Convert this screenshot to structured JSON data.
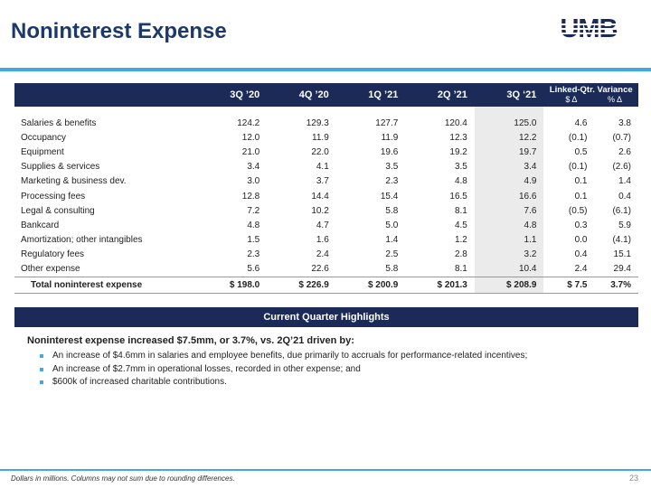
{
  "header": {
    "title": "Noninterest Expense",
    "logo_text": "UMB",
    "colors": {
      "navy": "#1b2a57",
      "title": "#1b3a6b",
      "accent": "#3fa9e0"
    }
  },
  "table": {
    "columns": [
      "3Q ’20",
      "4Q ’20",
      "1Q ’21",
      "2Q ’21",
      "3Q ‘21"
    ],
    "variance_header": "Linked-Qtr. Variance",
    "variance_sub": [
      "$ Δ",
      "% Δ"
    ],
    "rows": [
      {
        "label": "Salaries & benefits",
        "values": [
          "124.2",
          "129.3",
          "127.7",
          "120.4",
          "125.0"
        ],
        "var_abs": "4.6",
        "var_pct": "3.8"
      },
      {
        "label": "Occupancy",
        "values": [
          "12.0",
          "11.9",
          "11.9",
          "12.3",
          "12.2"
        ],
        "var_abs": "(0.1)",
        "var_pct": "(0.7)"
      },
      {
        "label": "Equipment",
        "values": [
          "21.0",
          "22.0",
          "19.6",
          "19.2",
          "19.7"
        ],
        "var_abs": "0.5",
        "var_pct": "2.6"
      },
      {
        "label": "Supplies & services",
        "values": [
          "3.4",
          "4.1",
          "3.5",
          "3.5",
          "3.4"
        ],
        "var_abs": "(0.1)",
        "var_pct": "(2.6)"
      },
      {
        "label": "Marketing & business dev.",
        "values": [
          "3.0",
          "3.7",
          "2.3",
          "4.8",
          "4.9"
        ],
        "var_abs": "0.1",
        "var_pct": "1.4"
      },
      {
        "label": "Processing fees",
        "values": [
          "12.8",
          "14.4",
          "15.4",
          "16.5",
          "16.6"
        ],
        "var_abs": "0.1",
        "var_pct": "0.4"
      },
      {
        "label": "Legal & consulting",
        "values": [
          "7.2",
          "10.2",
          "5.8",
          "8.1",
          "7.6"
        ],
        "var_abs": "(0.5)",
        "var_pct": "(6.1)"
      },
      {
        "label": "Bankcard",
        "values": [
          "4.8",
          "4.7",
          "5.0",
          "4.5",
          "4.8"
        ],
        "var_abs": "0.3",
        "var_pct": "5.9"
      },
      {
        "label": "Amortization; other intangibles",
        "values": [
          "1.5",
          "1.6",
          "1.4",
          "1.2",
          "1.1"
        ],
        "var_abs": "0.0",
        "var_pct": "(4.1)"
      },
      {
        "label": "Regulatory fees",
        "values": [
          "2.3",
          "2.4",
          "2.5",
          "2.8",
          "3.2"
        ],
        "var_abs": "0.4",
        "var_pct": "15.1"
      },
      {
        "label": "Other expense",
        "values": [
          "5.6",
          "22.6",
          "5.8",
          "8.1",
          "10.4"
        ],
        "var_abs": "2.4",
        "var_pct": "29.4"
      }
    ],
    "total": {
      "label": "Total noninterest expense",
      "values": [
        "$ 198.0",
        "$ 226.9",
        "$ 200.9",
        "$ 201.3",
        "$ 208.9"
      ],
      "var_abs": "$ 7.5",
      "var_pct": "3.7%"
    }
  },
  "highlights": {
    "title": "Current Quarter Highlights",
    "lead": "Noninterest expense increased $7.5mm, or 3.7%, vs. 2Q’21 driven by:",
    "bullets": [
      "An increase of $4.6mm in salaries and employee benefits, due primarily to accruals for performance-related incentives;",
      "An increase of $2.7mm in operational losses, recorded in other expense; and",
      "$600k of increased charitable contributions."
    ]
  },
  "footer": {
    "note": "Dollars in millions. Columns may not sum due to rounding differences.",
    "page": "23"
  }
}
